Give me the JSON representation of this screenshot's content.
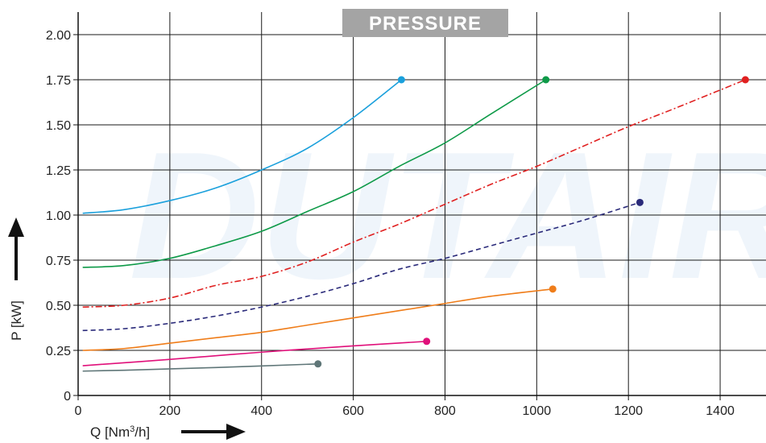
{
  "chart_data": {
    "type": "line",
    "title": "PRESSURE",
    "watermark": "DUTAIR",
    "xlabel_main": "Q [Nm",
    "xlabel_sup": "3",
    "xlabel_tail": "/h]",
    "ylabel": "P [kW]",
    "xlim": [
      0,
      1500
    ],
    "ylim": [
      0,
      2.125
    ],
    "xticks": [
      0,
      200,
      400,
      600,
      800,
      1000,
      1200,
      1400
    ],
    "yticks": [
      0,
      0.25,
      0.5,
      0.75,
      1.0,
      1.25,
      1.5,
      1.75,
      2.0
    ],
    "xtick_labels": [
      "0",
      "200",
      "400",
      "600",
      "800",
      "1000",
      "1200",
      "1400"
    ],
    "ytick_labels": [
      "0",
      "0.25",
      "0.50",
      "0.75",
      "1.00",
      "1.25",
      "1.50",
      "1.75",
      "2.00"
    ],
    "grid": true,
    "series": [
      {
        "color": "#1aa0dc",
        "dash": "solid",
        "points": [
          [
            10,
            1.01
          ],
          [
            100,
            1.03
          ],
          [
            200,
            1.08
          ],
          [
            300,
            1.15
          ],
          [
            400,
            1.25
          ],
          [
            500,
            1.37
          ],
          [
            600,
            1.54
          ],
          [
            705,
            1.75
          ]
        ]
      },
      {
        "color": "#0e9a48",
        "dash": "solid",
        "points": [
          [
            10,
            0.71
          ],
          [
            100,
            0.72
          ],
          [
            200,
            0.76
          ],
          [
            300,
            0.83
          ],
          [
            400,
            0.91
          ],
          [
            500,
            1.02
          ],
          [
            600,
            1.13
          ],
          [
            700,
            1.27
          ],
          [
            800,
            1.4
          ],
          [
            900,
            1.56
          ],
          [
            1020,
            1.75
          ]
        ]
      },
      {
        "color": "#e02020",
        "dash": "dashdot",
        "points": [
          [
            10,
            0.49
          ],
          [
            100,
            0.5
          ],
          [
            200,
            0.54
          ],
          [
            300,
            0.61
          ],
          [
            400,
            0.66
          ],
          [
            500,
            0.74
          ],
          [
            600,
            0.85
          ],
          [
            700,
            0.95
          ],
          [
            800,
            1.06
          ],
          [
            900,
            1.17
          ],
          [
            1000,
            1.27
          ],
          [
            1100,
            1.38
          ],
          [
            1200,
            1.49
          ],
          [
            1300,
            1.59
          ],
          [
            1455,
            1.75
          ]
        ]
      },
      {
        "color": "#2a2a7a",
        "dash": "dashed",
        "points": [
          [
            10,
            0.36
          ],
          [
            100,
            0.37
          ],
          [
            200,
            0.4
          ],
          [
            300,
            0.44
          ],
          [
            400,
            0.49
          ],
          [
            500,
            0.55
          ],
          [
            600,
            0.62
          ],
          [
            700,
            0.7
          ],
          [
            800,
            0.76
          ],
          [
            900,
            0.83
          ],
          [
            1000,
            0.9
          ],
          [
            1100,
            0.97
          ],
          [
            1225,
            1.07
          ]
        ]
      },
      {
        "color": "#ef7d1a",
        "dash": "solid",
        "points": [
          [
            10,
            0.25
          ],
          [
            100,
            0.26
          ],
          [
            200,
            0.29
          ],
          [
            300,
            0.32
          ],
          [
            400,
            0.35
          ],
          [
            500,
            0.39
          ],
          [
            600,
            0.43
          ],
          [
            700,
            0.47
          ],
          [
            800,
            0.51
          ],
          [
            900,
            0.55
          ],
          [
            1035,
            0.59
          ]
        ]
      },
      {
        "color": "#e0107a",
        "dash": "solid",
        "points": [
          [
            10,
            0.165
          ],
          [
            200,
            0.2
          ],
          [
            400,
            0.24
          ],
          [
            600,
            0.275
          ],
          [
            760,
            0.3
          ]
        ]
      },
      {
        "color": "#5f7678",
        "dash": "solid",
        "points": [
          [
            10,
            0.135
          ],
          [
            100,
            0.14
          ],
          [
            300,
            0.155
          ],
          [
            523,
            0.175
          ]
        ]
      }
    ]
  }
}
